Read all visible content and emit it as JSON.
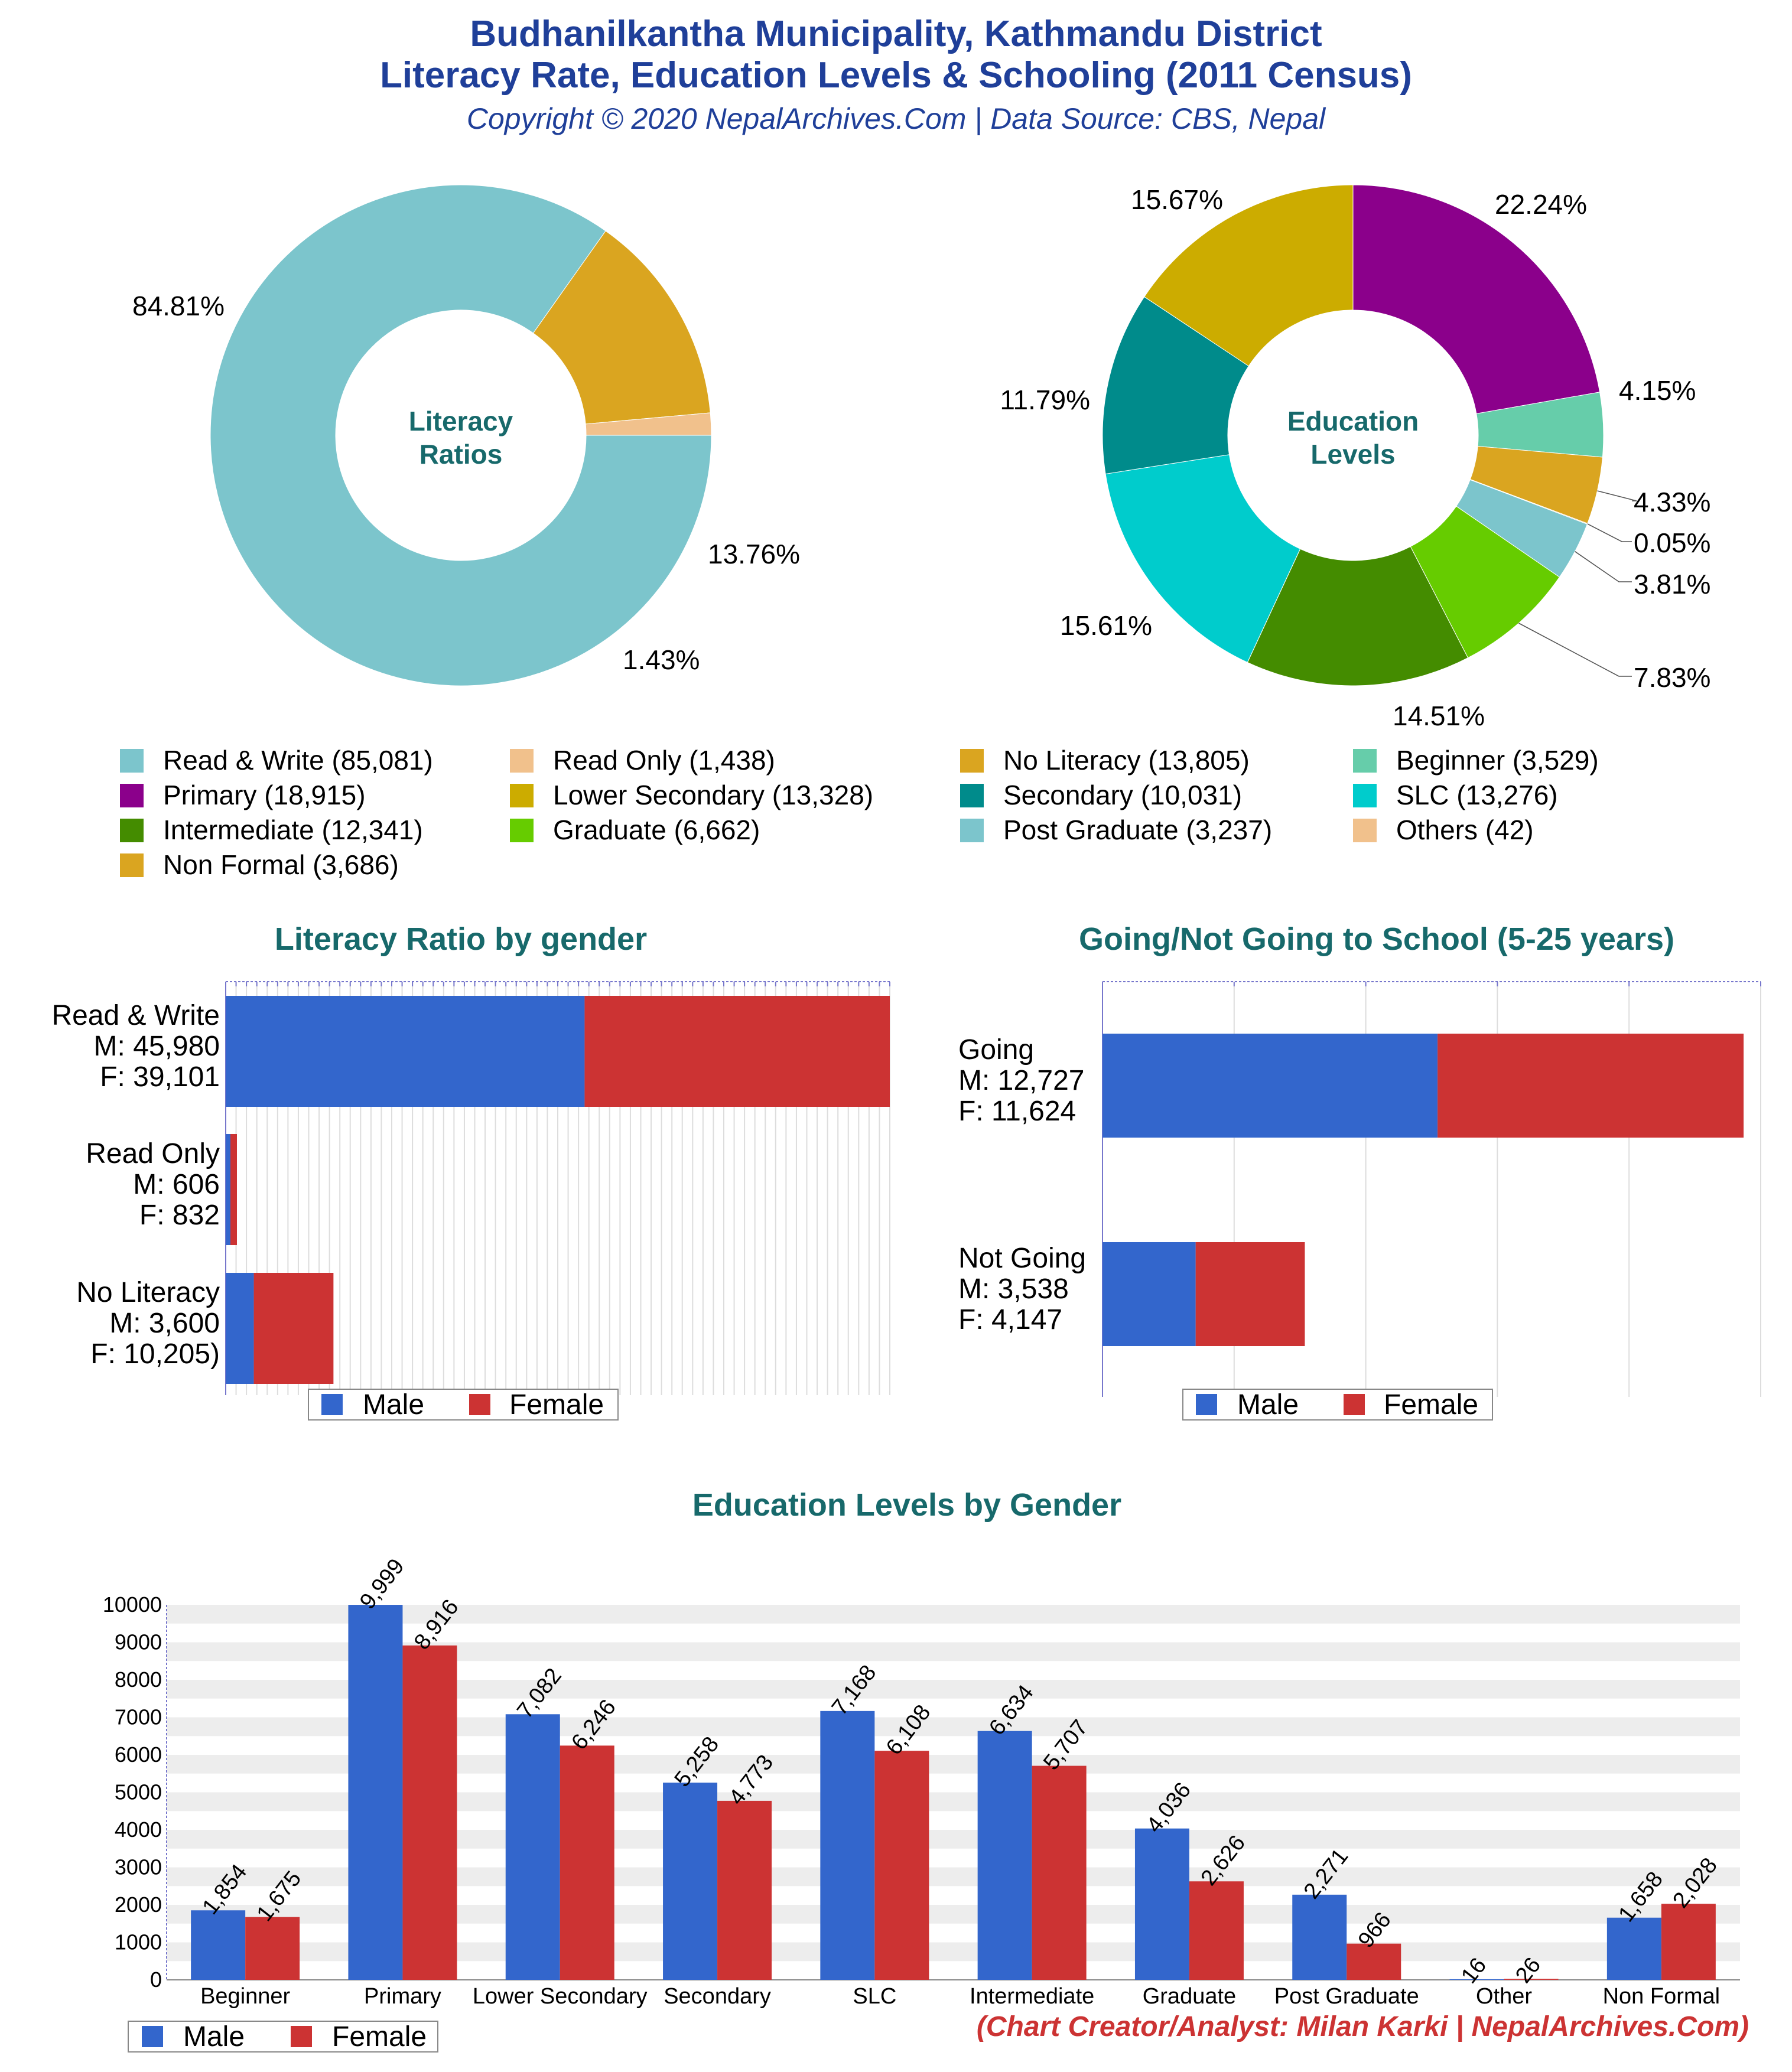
{
  "header": {
    "title_line1": "Budhanilkantha Municipality, Kathmandu District",
    "title_line2": "Literacy Rate, Education Levels & Schooling (2011 Census)",
    "subtitle": "Copyright © 2020 NepalArchives.Com | Data Source: CBS, Nepal"
  },
  "credit": "(Chart Creator/Analyst: Milan Karki | NepalArchives.Com)",
  "colors": {
    "male": "#3366cc",
    "female": "#cc3333",
    "title": "#17696b",
    "header": "#1f3f99"
  },
  "chart_data": [
    {
      "type": "pie",
      "id": "literacy_donut",
      "center_label": [
        "Literacy",
        "Ratios"
      ],
      "slices": [
        {
          "name": "Read & Write",
          "value": 85081,
          "percent": "84.81%",
          "color": "#7cc5cc"
        },
        {
          "name": "No Literacy",
          "value": 13805,
          "percent": "13.76%",
          "color": "#daa520"
        },
        {
          "name": "Read Only",
          "value": 1438,
          "percent": "1.43%",
          "color": "#f1c18c"
        }
      ]
    },
    {
      "type": "pie",
      "id": "education_donut",
      "center_label": [
        "Education",
        "Levels"
      ],
      "slices": [
        {
          "name": "Primary",
          "value": 18915,
          "percent": "22.24%",
          "color": "#8b008b"
        },
        {
          "name": "Beginner",
          "value": 3529,
          "percent": "4.15%",
          "color": "#66cdaa"
        },
        {
          "name": "Non Formal",
          "value": 3686,
          "percent": "4.33%",
          "color": "#daa520"
        },
        {
          "name": "Others",
          "value": 42,
          "percent": "0.05%",
          "color": "#f1c18c"
        },
        {
          "name": "Post Graduate",
          "value": 3237,
          "percent": "3.81%",
          "color": "#7cc5cc"
        },
        {
          "name": "Graduate",
          "value": 6662,
          "percent": "7.83%",
          "color": "#66cc00"
        },
        {
          "name": "Intermediate",
          "value": 12341,
          "percent": "14.51%",
          "color": "#448c00"
        },
        {
          "name": "SLC",
          "value": 13276,
          "percent": "15.61%",
          "color": "#00cccc"
        },
        {
          "name": "Secondary",
          "value": 10031,
          "percent": "11.79%",
          "color": "#008b8b"
        },
        {
          "name": "Lower Secondary",
          "value": 13328,
          "percent": "15.67%",
          "color": "#ccac00"
        }
      ]
    },
    {
      "type": "bar",
      "id": "literacy_by_gender",
      "title": "Literacy Ratio by gender",
      "orientation": "horizontal",
      "stacked": true,
      "categories": [
        [
          "Read & Write",
          "M: 45,980",
          "F: 39,101"
        ],
        [
          "Read Only",
          "M: 606",
          "F: 832"
        ],
        [
          "No Literacy",
          "M: 3,600",
          "F: 10,205)"
        ]
      ],
      "series": [
        {
          "name": "Male",
          "values": [
            45980,
            606,
            3600
          ]
        },
        {
          "name": "Female",
          "values": [
            39101,
            832,
            10205
          ]
        }
      ],
      "xlim": [
        0,
        85081
      ],
      "legend": "bottom"
    },
    {
      "type": "bar",
      "id": "school_going",
      "title": "Going/Not Going to School (5-25 years)",
      "orientation": "horizontal",
      "stacked": true,
      "categories": [
        [
          "Going",
          "M: 12,727",
          "F: 11,624"
        ],
        [
          "Not Going",
          "M: 3,538",
          "F: 4,147"
        ]
      ],
      "series": [
        {
          "name": "Male",
          "values": [
            12727,
            3538
          ]
        },
        {
          "name": "Female",
          "values": [
            11624,
            4147
          ]
        }
      ],
      "xlim": [
        0,
        25000
      ],
      "legend": "bottom"
    },
    {
      "type": "bar",
      "id": "education_by_gender",
      "title": "Education Levels by Gender",
      "categories": [
        "Beginner",
        "Primary",
        "Lower Secondary",
        "Secondary",
        "SLC",
        "Intermediate",
        "Graduate",
        "Post Graduate",
        "Other",
        "Non Formal"
      ],
      "series": [
        {
          "name": "Male",
          "values": [
            1854,
            9999,
            7082,
            5258,
            7168,
            6634,
            4036,
            2271,
            16,
            1658
          ],
          "labels": [
            "1,854",
            "9,999",
            "7,082",
            "5,258",
            "7,168",
            "6,634",
            "4,036",
            "2,271",
            "16",
            "1,658"
          ]
        },
        {
          "name": "Female",
          "values": [
            1675,
            8916,
            6246,
            4773,
            6108,
            5707,
            2626,
            966,
            26,
            2028
          ],
          "labels": [
            "1,675",
            "8,916",
            "6,246",
            "4,773",
            "6,108",
            "5,707",
            "2,626",
            "966",
            "26",
            "2,028"
          ]
        }
      ],
      "ylim": [
        0,
        10000
      ],
      "yticks": [
        "0",
        "1000",
        "2000",
        "3000",
        "4000",
        "5000",
        "6000",
        "7000",
        "8000",
        "9000",
        "10000"
      ],
      "legend": "bottom-left"
    }
  ],
  "legend": {
    "items": [
      {
        "label": "Read & Write (85,081)",
        "color": "#7cc5cc"
      },
      {
        "label": "Read Only (1,438)",
        "color": "#f1c18c"
      },
      {
        "label": "No Literacy (13,805)",
        "color": "#daa520"
      },
      {
        "label": "Beginner (3,529)",
        "color": "#66cdaa"
      },
      {
        "label": "Primary (18,915)",
        "color": "#8b008b"
      },
      {
        "label": "Lower Secondary (13,328)",
        "color": "#ccac00"
      },
      {
        "label": "Secondary (10,031)",
        "color": "#008b8b"
      },
      {
        "label": "SLC (13,276)",
        "color": "#00cccc"
      },
      {
        "label": "Intermediate (12,341)",
        "color": "#448c00"
      },
      {
        "label": "Graduate (6,662)",
        "color": "#66cc00"
      },
      {
        "label": "Post Graduate (3,237)",
        "color": "#7cc5cc"
      },
      {
        "label": "Others (42)",
        "color": "#f1c18c"
      },
      {
        "label": "Non Formal (3,686)",
        "color": "#daa520"
      }
    ]
  }
}
